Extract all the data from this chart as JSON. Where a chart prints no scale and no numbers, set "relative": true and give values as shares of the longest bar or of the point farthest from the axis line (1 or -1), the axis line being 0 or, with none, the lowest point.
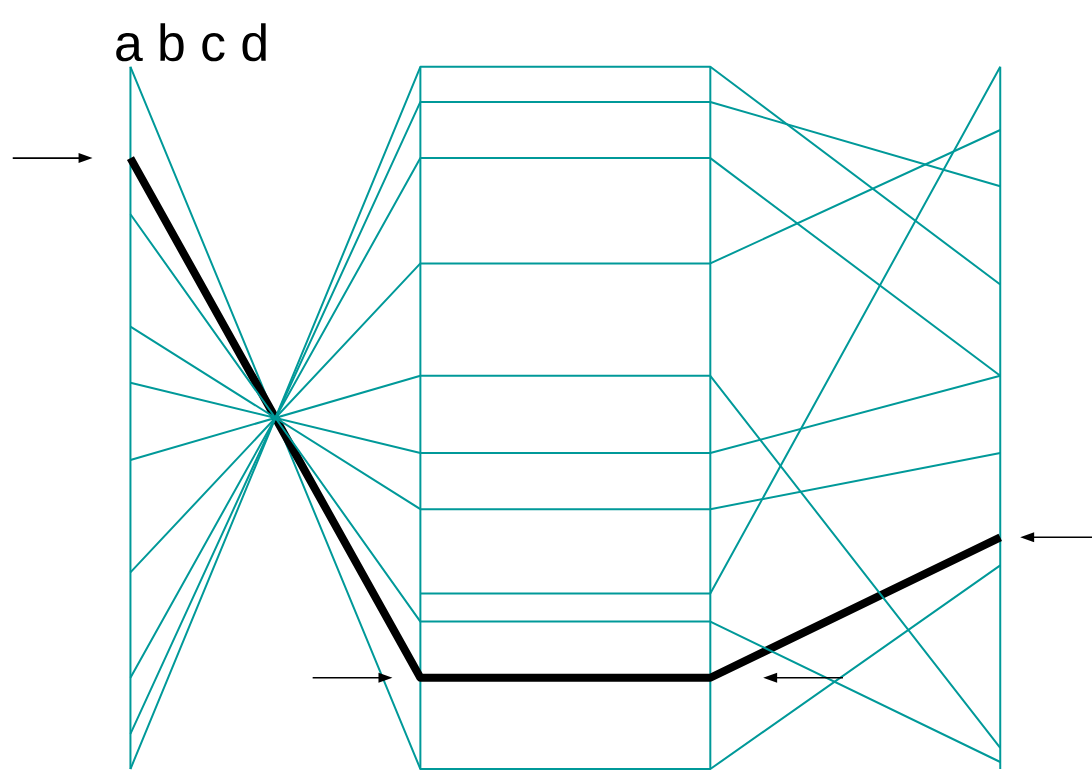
{
  "chart_data": {
    "type": "line",
    "title": "a b c d",
    "relative": true,
    "grid": "x",
    "marker": "none",
    "categories": [
      null,
      null,
      null,
      null
    ],
    "series": [
      {
        "color": "#009999",
        "values": [
          1,
          0,
          0,
          0.29
        ]
      },
      {
        "color": "#000000",
        "values": [
          0.87,
          0.13,
          0.13,
          0.33
        ]
      },
      {
        "color": "#009999",
        "values": [
          0.79,
          0.21,
          0.21,
          0.01
        ]
      },
      {
        "color": "#009999",
        "values": [
          0.63,
          0.37,
          0.37,
          0.45
        ]
      },
      {
        "color": "#009999",
        "values": [
          0.55,
          0.45,
          0.45,
          0.56
        ]
      },
      {
        "color": "#009999",
        "values": [
          0.44,
          0.56,
          0.56,
          0.03
        ]
      },
      {
        "color": "#009999",
        "values": [
          0.28,
          0.72,
          0.72,
          0.91
        ]
      },
      {
        "color": "#009999",
        "values": [
          0.13,
          0.87,
          0.87,
          0.56
        ]
      },
      {
        "color": "#009999",
        "values": [
          0.05,
          0.95,
          0.95,
          0.83
        ]
      },
      {
        "color": "#009999",
        "values": [
          0,
          1,
          1,
          0.69
        ]
      },
      {
        "color": "#009999",
        "values": [
          null,
          0.25,
          0.25,
          1
        ]
      }
    ]
  }
}
